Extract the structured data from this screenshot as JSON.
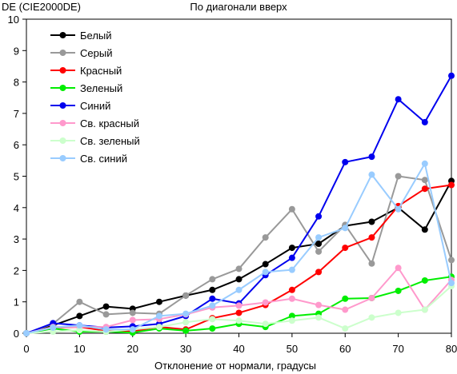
{
  "chart_data": {
    "type": "line",
    "title": "По диагонали вверх",
    "xlabel": "Отклонение от нормали, градусы",
    "ylabel": "DE (CIE2000DE)",
    "xlim": [
      0,
      80
    ],
    "ylim": [
      0,
      10
    ],
    "x_ticks": [
      "0",
      "10",
      "20",
      "30",
      "40",
      "50",
      "60",
      "70",
      "80"
    ],
    "y_ticks": [
      "0",
      "1",
      "2",
      "3",
      "4",
      "5",
      "6",
      "7",
      "8",
      "9",
      "10"
    ],
    "grid": false,
    "legend_position": "top-left",
    "x": [
      0,
      5,
      10,
      15,
      20,
      25,
      30,
      35,
      40,
      45,
      50,
      55,
      60,
      65,
      70,
      75,
      80
    ],
    "series": [
      {
        "name": "Белый",
        "color": "#000000",
        "values": [
          0,
          0.25,
          0.55,
          0.85,
          0.78,
          1.0,
          1.2,
          1.38,
          1.72,
          2.2,
          2.72,
          2.85,
          3.42,
          3.55,
          4.0,
          3.3,
          4.85
        ]
      },
      {
        "name": "Серый",
        "color": "#999999",
        "values": [
          0,
          0.3,
          1.0,
          0.6,
          0.65,
          0.62,
          1.2,
          1.72,
          2.05,
          3.05,
          3.95,
          2.6,
          3.45,
          2.22,
          5.0,
          4.88,
          2.33
        ]
      },
      {
        "name": "Красный",
        "color": "#ff0000",
        "values": [
          0,
          0.18,
          0.2,
          0.08,
          0.06,
          0.2,
          0.12,
          0.48,
          0.65,
          0.9,
          1.38,
          1.95,
          2.72,
          3.05,
          4.05,
          4.6,
          4.72
        ]
      },
      {
        "name": "Зеленый",
        "color": "#00ee00",
        "values": [
          0,
          0.15,
          0.05,
          0.05,
          0.02,
          0.15,
          0.08,
          0.15,
          0.3,
          0.2,
          0.55,
          0.62,
          1.1,
          1.12,
          1.35,
          1.68,
          1.8
        ]
      },
      {
        "name": "Синий",
        "color": "#0000ee",
        "values": [
          0,
          0.32,
          0.25,
          0.18,
          0.22,
          0.3,
          0.55,
          1.1,
          0.95,
          1.85,
          2.4,
          3.72,
          5.45,
          5.62,
          7.45,
          6.72,
          8.2
        ]
      },
      {
        "name": "Св. красный",
        "color": "#ff99cc",
        "values": [
          0,
          0.2,
          0.2,
          0.2,
          0.42,
          0.45,
          0.6,
          0.82,
          0.88,
          0.98,
          1.1,
          0.9,
          0.75,
          1.12,
          2.08,
          0.75,
          1.7
        ]
      },
      {
        "name": "Св. зеленый",
        "color": "#ccffcc",
        "values": [
          0,
          0.05,
          0.1,
          0.05,
          0.12,
          0.2,
          0.35,
          0.45,
          0.4,
          0.3,
          0.4,
          0.5,
          0.15,
          0.5,
          0.65,
          0.75,
          1.5
        ]
      },
      {
        "name": "Св. синий",
        "color": "#99ccff",
        "values": [
          0,
          0.18,
          0.25,
          0.12,
          0.12,
          0.55,
          0.62,
          0.88,
          1.38,
          1.95,
          2.02,
          3.05,
          3.35,
          5.05,
          3.95,
          5.4,
          1.6
        ]
      }
    ]
  }
}
